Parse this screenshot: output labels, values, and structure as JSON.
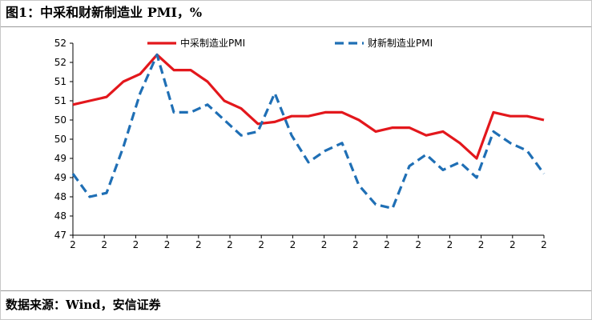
{
  "figure": {
    "title": "图1：中采和财新制造业 PMI，%",
    "source": "数据来源：Wind，安信证券"
  },
  "chart_data": {
    "type": "line",
    "title": "图1：中采和财新制造业 PMI，%",
    "xlabel": "",
    "ylabel": "",
    "y_tick_labels": [
      "52",
      "52",
      "51",
      "51",
      "50",
      "50",
      "49",
      "49",
      "48",
      "48",
      "47"
    ],
    "ylim": [
      47,
      52
    ],
    "x_tick_label": "2",
    "x_tick_count": 16,
    "grid": false,
    "legend_position": "top",
    "series": [
      {
        "name": "中采制造业PMI",
        "color": "#e3171c",
        "style": "solid",
        "values": [
          50.4,
          50.5,
          50.6,
          51.0,
          51.2,
          51.7,
          51.3,
          51.3,
          51.0,
          50.5,
          50.3,
          49.9,
          49.95,
          50.1,
          50.1,
          50.2,
          50.2,
          50.0,
          49.7,
          49.8,
          49.8,
          49.6,
          49.7,
          49.4,
          49.0,
          50.2,
          50.1,
          50.1,
          50.0
        ]
      },
      {
        "name": "财新制造业PMI",
        "color": "#1f6fb5",
        "style": "dashed",
        "values": [
          48.6,
          48.0,
          48.1,
          49.3,
          50.7,
          51.7,
          50.2,
          50.2,
          50.4,
          50.0,
          49.6,
          49.7,
          50.7,
          49.6,
          48.9,
          49.2,
          49.4,
          48.3,
          47.8,
          47.7,
          48.8,
          49.1,
          48.7,
          48.9,
          48.5,
          49.7,
          49.4,
          49.2,
          48.6
        ]
      }
    ]
  }
}
